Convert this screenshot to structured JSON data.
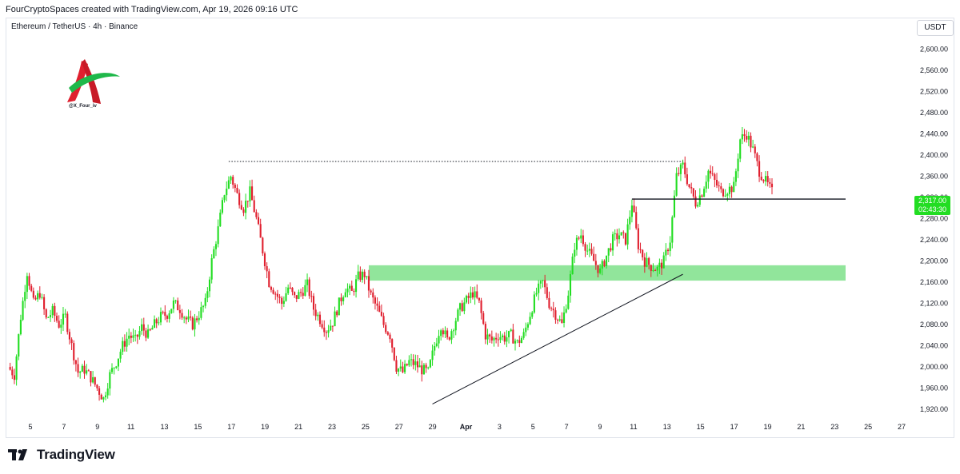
{
  "header": {
    "attribution": "FourCryptoSpaces created with TradingView.com, Apr 19, 2026 09:16 UTC",
    "symbol": "Ethereum / TetherUS · 4h · Binance",
    "currency": "USDT"
  },
  "watermark": {
    "handle": "@X_Four_iv"
  },
  "footer": {
    "brand": "TradingView"
  },
  "colors": {
    "up": "#22dd22",
    "down": "#e0202f",
    "zone": "#7ee08a",
    "line": "#131722",
    "grid": "#f0f3fa"
  },
  "chart_data": {
    "type": "candlestick",
    "symbol": "ETHUSDT",
    "interval": "4h",
    "y_ticks": [
      1920,
      1960,
      2000,
      2040,
      2080,
      2120,
      2160,
      2200,
      2240,
      2280,
      2320,
      2360,
      2400,
      2440,
      2480,
      2520,
      2560,
      2600
    ],
    "y_tick_labels": [
      "1,920.00",
      "1,960.00",
      "2,000.00",
      "2,040.00",
      "2,080.00",
      "2,120.00",
      "2,160.00",
      "2,200.00",
      "2,240.00",
      "2,280.00",
      "2,320.00",
      "2,360.00",
      "2,400.00",
      "2,440.00",
      "2,480.00",
      "2,520.00",
      "2,560.00",
      "2,600.00"
    ],
    "x_tick_labels": [
      "5",
      "7",
      "9",
      "11",
      "13",
      "15",
      "17",
      "19",
      "21",
      "23",
      "25",
      "27",
      "29",
      "Apr",
      "3",
      "5",
      "7",
      "9",
      "11",
      "13",
      "15",
      "17",
      "19",
      "21",
      "23",
      "25",
      "27"
    ],
    "ylim": [
      1905,
      2625
    ],
    "current_price": {
      "value": "2,317.00",
      "countdown": "02:43:30"
    },
    "candles_description": "Approximate 4h closes from Mar 4 to Apr 19",
    "path": [
      [
        0,
        2000
      ],
      [
        3,
        1985
      ],
      [
        6,
        2095
      ],
      [
        9,
        2180
      ],
      [
        12,
        2120
      ],
      [
        15,
        2140
      ],
      [
        18,
        2090
      ],
      [
        21,
        2105
      ],
      [
        24,
        2080
      ],
      [
        27,
        2095
      ],
      [
        30,
        2040
      ],
      [
        33,
        1990
      ],
      [
        36,
        1995
      ],
      [
        39,
        1980
      ],
      [
        42,
        1960
      ],
      [
        45,
        1940
      ],
      [
        48,
        1985
      ],
      [
        51,
        2010
      ],
      [
        54,
        2040
      ],
      [
        57,
        2060
      ],
      [
        60,
        2050
      ],
      [
        63,
        2075
      ],
      [
        66,
        2060
      ],
      [
        69,
        2080
      ],
      [
        72,
        2095
      ],
      [
        75,
        2100
      ],
      [
        78,
        2120
      ],
      [
        81,
        2110
      ],
      [
        84,
        2090
      ],
      [
        87,
        2080
      ],
      [
        90,
        2100
      ],
      [
        93,
        2120
      ],
      [
        96,
        2200
      ],
      [
        99,
        2260
      ],
      [
        102,
        2330
      ],
      [
        105,
        2360
      ],
      [
        108,
        2325
      ],
      [
        111,
        2300
      ],
      [
        114,
        2330
      ],
      [
        117,
        2280
      ],
      [
        120,
        2220
      ],
      [
        123,
        2160
      ],
      [
        126,
        2140
      ],
      [
        129,
        2120
      ],
      [
        132,
        2150
      ],
      [
        135,
        2130
      ],
      [
        138,
        2140
      ],
      [
        141,
        2155
      ],
      [
        144,
        2110
      ],
      [
        147,
        2090
      ],
      [
        150,
        2070
      ],
      [
        153,
        2085
      ],
      [
        156,
        2120
      ],
      [
        159,
        2150
      ],
      [
        162,
        2140
      ],
      [
        165,
        2170
      ],
      [
        168,
        2175
      ],
      [
        171,
        2135
      ],
      [
        174,
        2110
      ],
      [
        177,
        2080
      ],
      [
        180,
        2060
      ],
      [
        183,
        2000
      ],
      [
        186,
        1990
      ],
      [
        189,
        2010
      ],
      [
        192,
        2005
      ],
      [
        195,
        1995
      ],
      [
        198,
        1990
      ],
      [
        201,
        2040
      ],
      [
        204,
        2080
      ],
      [
        207,
        2050
      ],
      [
        210,
        2080
      ],
      [
        213,
        2110
      ],
      [
        216,
        2125
      ],
      [
        219,
        2140
      ],
      [
        222,
        2120
      ],
      [
        225,
        2060
      ],
      [
        228,
        2050
      ],
      [
        231,
        2060
      ],
      [
        234,
        2055
      ],
      [
        237,
        2060
      ],
      [
        240,
        2045
      ],
      [
        243,
        2060
      ],
      [
        246,
        2100
      ],
      [
        249,
        2140
      ],
      [
        252,
        2160
      ],
      [
        255,
        2120
      ],
      [
        258,
        2100
      ],
      [
        261,
        2080
      ],
      [
        264,
        2140
      ],
      [
        267,
        2230
      ],
      [
        270,
        2250
      ],
      [
        273,
        2220
      ],
      [
        276,
        2200
      ],
      [
        279,
        2180
      ],
      [
        282,
        2210
      ],
      [
        285,
        2240
      ],
      [
        288,
        2250
      ],
      [
        291,
        2240
      ],
      [
        294,
        2310
      ],
      [
        297,
        2230
      ],
      [
        300,
        2200
      ],
      [
        303,
        2190
      ],
      [
        306,
        2185
      ],
      [
        309,
        2200
      ],
      [
        312,
        2240
      ],
      [
        315,
        2360
      ],
      [
        318,
        2380
      ],
      [
        321,
        2340
      ],
      [
        324,
        2310
      ],
      [
        327,
        2330
      ],
      [
        330,
        2370
      ],
      [
        333,
        2350
      ],
      [
        336,
        2330
      ],
      [
        339,
        2335
      ],
      [
        342,
        2340
      ],
      [
        345,
        2430
      ],
      [
        348,
        2440
      ],
      [
        351,
        2410
      ],
      [
        354,
        2370
      ],
      [
        357,
        2350
      ],
      [
        360,
        2330
      ]
    ],
    "annotations": {
      "dotted_resistance": {
        "price": 2388,
        "from_index": 104,
        "to_index": 318
      },
      "support_zone": {
        "low": 2163,
        "high": 2192,
        "from_index": 170
      },
      "horizontal_level": {
        "price": 2317,
        "from_index": 294
      },
      "trendline": {
        "from": [
          200,
          1930
        ],
        "to": [
          318,
          2175
        ]
      }
    }
  }
}
